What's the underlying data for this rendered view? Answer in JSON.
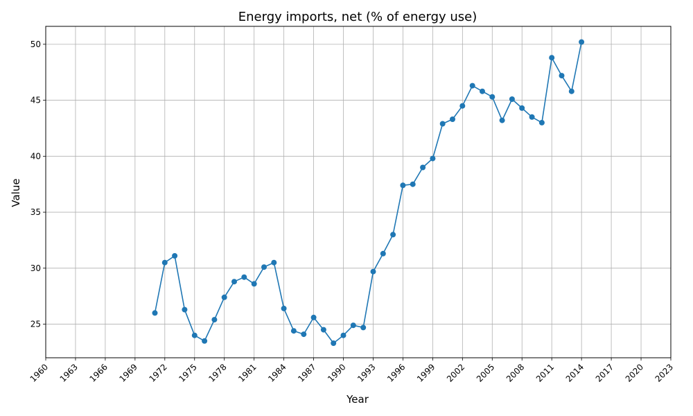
{
  "chart_data": {
    "type": "line",
    "title": "Energy imports, net (% of energy use)",
    "xlabel": "Year",
    "ylabel": "Value",
    "xlim": [
      1960,
      2023
    ],
    "ylim": [
      22,
      51.6
    ],
    "x_ticks": [
      1960,
      1963,
      1966,
      1969,
      1972,
      1975,
      1978,
      1981,
      1984,
      1987,
      1990,
      1993,
      1996,
      1999,
      2002,
      2005,
      2008,
      2011,
      2014,
      2017,
      2020,
      2023
    ],
    "y_ticks": [
      25,
      30,
      35,
      40,
      45,
      50
    ],
    "grid": true,
    "line_color": "#1f77b4",
    "series": [
      {
        "x": [
          1971,
          1972,
          1973,
          1974,
          1975,
          1976,
          1977,
          1978,
          1979,
          1980,
          1981,
          1982,
          1983,
          1984,
          1985,
          1986,
          1987,
          1988,
          1989,
          1990,
          1991,
          1992,
          1993,
          1994,
          1995,
          1996,
          1997,
          1998,
          1999,
          2000,
          2001,
          2002,
          2003,
          2004,
          2005,
          2006,
          2007,
          2008,
          2009,
          2010,
          2011,
          2012,
          2013,
          2014
        ],
        "y": [
          26.0,
          30.5,
          31.1,
          26.3,
          24.0,
          23.5,
          25.4,
          27.4,
          28.8,
          29.2,
          28.6,
          30.1,
          30.5,
          26.4,
          24.4,
          24.1,
          25.6,
          24.5,
          23.3,
          24.0,
          24.9,
          24.7,
          29.7,
          31.3,
          33.0,
          37.4,
          37.5,
          39.0,
          39.8,
          42.9,
          43.3,
          44.5,
          46.3,
          45.8,
          45.3,
          43.2,
          45.1,
          44.3,
          43.5,
          43.0,
          48.8,
          47.2,
          45.8,
          50.2
        ]
      }
    ]
  }
}
